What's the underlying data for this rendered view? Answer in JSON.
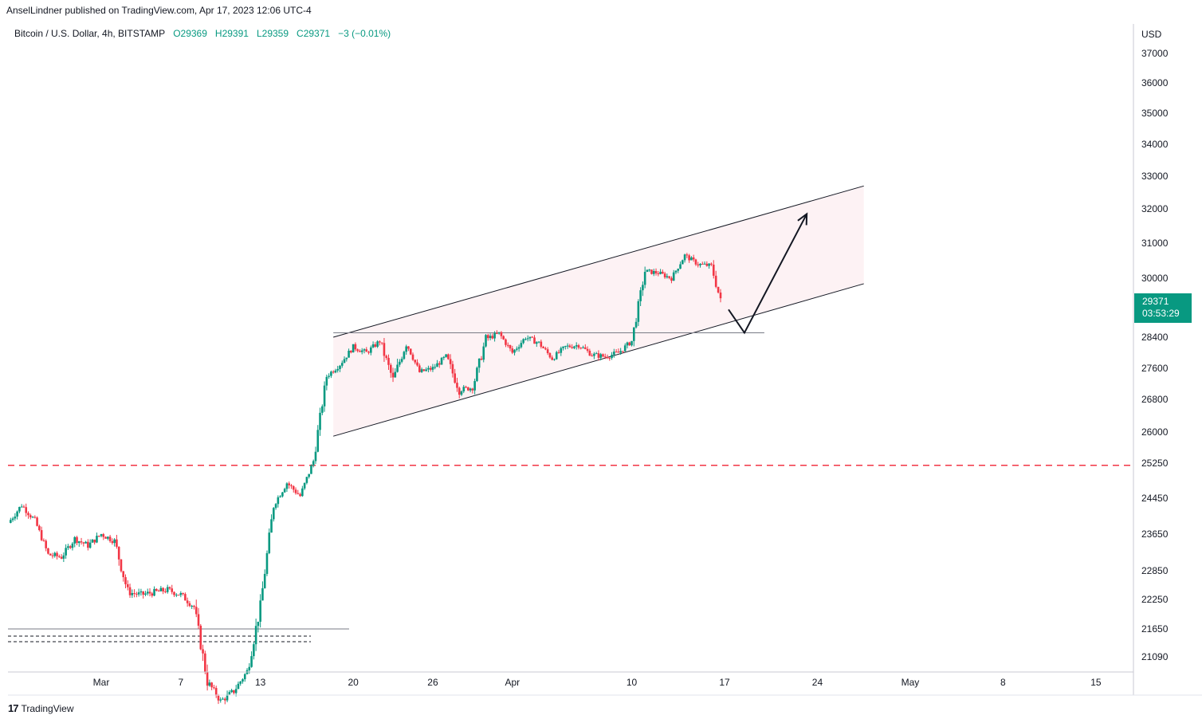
{
  "header": {
    "published": "AnselLindner published on TradingView.com, Apr 17, 2023 12:06 UTC-4"
  },
  "legend": {
    "symbol": "Bitcoin / U.S. Dollar, 4h, BITSTAMP",
    "open": "O29369",
    "high": "H29391",
    "low": "L29359",
    "close": "C29371",
    "change": "−3 (−0.01%)"
  },
  "price_axis": {
    "currency": "USD"
  },
  "price_badge": {
    "price": "29371",
    "countdown": "03:53:29"
  },
  "footer": {
    "brand": "TradingView"
  },
  "colors": {
    "up": "#089981",
    "down": "#f23645",
    "channel_fill": "#fce9ec",
    "level_line": "#f23645"
  },
  "chart_data": {
    "type": "candlestick",
    "symbol": "BTCUSD",
    "timeframe": "4h",
    "y_ticks": [
      37000,
      36000,
      35000,
      34000,
      33000,
      32000,
      31000,
      30000,
      28400,
      27600,
      26800,
      26000,
      25250,
      24450,
      23650,
      22850,
      22250,
      21650,
      21090
    ],
    "x_ticks": [
      {
        "label": "Mar",
        "x": 0
      },
      {
        "label": "7",
        "x": 6
      },
      {
        "label": "13",
        "x": 12
      },
      {
        "label": "20",
        "x": 19
      },
      {
        "label": "26",
        "x": 25
      },
      {
        "label": "Apr",
        "x": 31
      },
      {
        "label": "10",
        "x": 40
      },
      {
        "label": "17",
        "x": 47
      },
      {
        "label": "24",
        "x": 54
      },
      {
        "label": "May",
        "x": 61
      },
      {
        "label": "8",
        "x": 68
      },
      {
        "label": "15",
        "x": 75
      }
    ],
    "ylim": [
      20800,
      37600
    ],
    "xlim": [
      -7,
      82.5
    ],
    "last_price": 29371,
    "closes_daily": [
      {
        "x": -7,
        "c": 23900
      },
      {
        "x": -6,
        "c": 24300
      },
      {
        "x": -5,
        "c": 23950
      },
      {
        "x": -4,
        "c": 23200
      },
      {
        "x": -3,
        "c": 23150
      },
      {
        "x": -2,
        "c": 23550
      },
      {
        "x": -1,
        "c": 23400
      },
      {
        "x": 0,
        "c": 23650
      },
      {
        "x": 1,
        "c": 23500
      },
      {
        "x": 2,
        "c": 22400
      },
      {
        "x": 3,
        "c": 22350
      },
      {
        "x": 4,
        "c": 22400
      },
      {
        "x": 5,
        "c": 22450
      },
      {
        "x": 6,
        "c": 22350
      },
      {
        "x": 7,
        "c": 22100
      },
      {
        "x": 8,
        "c": 20600
      },
      {
        "x": 9,
        "c": 20200
      },
      {
        "x": 10,
        "c": 20400
      },
      {
        "x": 11,
        "c": 20800
      },
      {
        "x": 12,
        "c": 22100
      },
      {
        "x": 13,
        "c": 24300
      },
      {
        "x": 14,
        "c": 24800
      },
      {
        "x": 15,
        "c": 24500
      },
      {
        "x": 16,
        "c": 25300
      },
      {
        "x": 17,
        "c": 27400
      },
      {
        "x": 18,
        "c": 27700
      },
      {
        "x": 19,
        "c": 28150
      },
      {
        "x": 20,
        "c": 28000
      },
      {
        "x": 21,
        "c": 28300
      },
      {
        "x": 22,
        "c": 27300
      },
      {
        "x": 23,
        "c": 28250
      },
      {
        "x": 24,
        "c": 27500
      },
      {
        "x": 25,
        "c": 27600
      },
      {
        "x": 26,
        "c": 27900
      },
      {
        "x": 27,
        "c": 27050
      },
      {
        "x": 28,
        "c": 27100
      },
      {
        "x": 29,
        "c": 28350
      },
      {
        "x": 30,
        "c": 28500
      },
      {
        "x": 31,
        "c": 28000
      },
      {
        "x": 32,
        "c": 28400
      },
      {
        "x": 33,
        "c": 28250
      },
      {
        "x": 34,
        "c": 27850
      },
      {
        "x": 35,
        "c": 28150
      },
      {
        "x": 36,
        "c": 28200
      },
      {
        "x": 37,
        "c": 27950
      },
      {
        "x": 38,
        "c": 27900
      },
      {
        "x": 39,
        "c": 28000
      },
      {
        "x": 40,
        "c": 28300
      },
      {
        "x": 41,
        "c": 30200
      },
      {
        "x": 42,
        "c": 30150
      },
      {
        "x": 43,
        "c": 30000
      },
      {
        "x": 44,
        "c": 30650
      },
      {
        "x": 45,
        "c": 30400
      },
      {
        "x": 46,
        "c": 30350
      },
      {
        "x": 46.7,
        "c": 29371
      }
    ],
    "channel": {
      "upper": [
        {
          "x": 17.5,
          "y": 28400
        },
        {
          "x": 57.5,
          "y": 32700
        }
      ],
      "lower": [
        {
          "x": 17.5,
          "y": 25900
        },
        {
          "x": 57.5,
          "y": 29850
        }
      ]
    },
    "horizontal_levels": [
      {
        "price": 25200,
        "style": "dashed",
        "color": "#f23645"
      },
      {
        "price": 28520,
        "style": "solid",
        "from_x": 17.5,
        "to_x": 50
      }
    ],
    "projection_arrow": [
      {
        "x": 47.3,
        "y": 29150
      },
      {
        "x": 48.5,
        "y": 28520
      },
      {
        "x": 53.2,
        "y": 31850
      }
    ]
  }
}
